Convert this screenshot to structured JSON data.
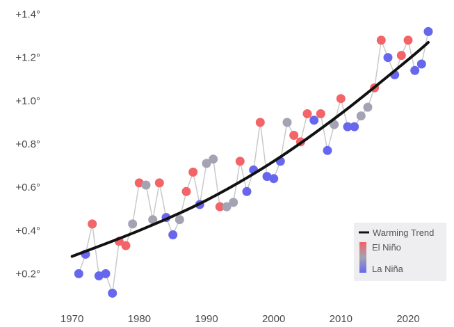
{
  "chart_data": {
    "type": "scatter",
    "xlim": [
      1966,
      2026
    ],
    "ylim": [
      0.05,
      1.45
    ],
    "x_ticks": [
      1970,
      1980,
      1990,
      2000,
      2010,
      2020
    ],
    "y_ticks": [
      0.2,
      0.4,
      0.6,
      0.8,
      1.0,
      1.2,
      1.4
    ],
    "y_tick_labels": [
      "+0.2°",
      "+0.4°",
      "+0.6°",
      "+0.8°",
      "+1.0°",
      "+1.2°",
      "+1.4°"
    ],
    "grid": false,
    "legend": {
      "position": "bottom-right",
      "trend_label": "Warming Trend",
      "el_nino_label": "El Niño",
      "la_nina_label": "La Niña"
    },
    "colors": {
      "el_nino": "#f26467",
      "neutral": "#a3a3b3",
      "la_nina": "#6767ee",
      "trend": "#111111",
      "connector": "#c9c9c9"
    },
    "series": [
      {
        "type": "line",
        "x": [
          1971,
          1972,
          1973,
          1974,
          1975,
          1976,
          1977,
          1978,
          1979,
          1980,
          1981,
          1982,
          1983,
          1984,
          1985,
          1986,
          1987,
          1988,
          1989,
          1990,
          1991,
          1992,
          1993,
          1994,
          1995,
          1996,
          1997,
          1998,
          1999,
          2000,
          2001,
          2002,
          2003,
          2004,
          2005,
          2006,
          2007,
          2008,
          2009,
          2010,
          2011,
          2012,
          2013,
          2014,
          2015,
          2016,
          2017,
          2018,
          2019,
          2020,
          2021,
          2022,
          2023
        ],
        "y": [
          0.2,
          0.29,
          0.43,
          0.19,
          0.2,
          0.11,
          0.35,
          0.33,
          0.43,
          0.62,
          0.61,
          0.45,
          0.62,
          0.46,
          0.38,
          0.45,
          0.58,
          0.67,
          0.52,
          0.71,
          0.73,
          0.51,
          0.51,
          0.53,
          0.72,
          0.58,
          0.68,
          0.9,
          0.65,
          0.64,
          0.72,
          0.9,
          0.84,
          0.81,
          0.94,
          0.91,
          0.94,
          0.77,
          0.89,
          1.01,
          0.88,
          0.88,
          0.93,
          0.97,
          1.06,
          1.28,
          1.2,
          1.12,
          1.21,
          1.28,
          1.14,
          1.17,
          1.32
        ],
        "enso": [
          "la_nina",
          "la_nina",
          "el_nino",
          "la_nina",
          "la_nina",
          "la_nina",
          "el_nino",
          "el_nino",
          "neutral",
          "el_nino",
          "neutral",
          "neutral",
          "el_nino",
          "la_nina",
          "la_nina",
          "neutral",
          "el_nino",
          "el_nino",
          "la_nina",
          "neutral",
          "neutral",
          "el_nino",
          "neutral",
          "neutral",
          "el_nino",
          "la_nina",
          "la_nina",
          "el_nino",
          "la_nina",
          "la_nina",
          "la_nina",
          "neutral",
          "el_nino",
          "el_nino",
          "el_nino",
          "la_nina",
          "el_nino",
          "la_nina",
          "neutral",
          "el_nino",
          "la_nina",
          "la_nina",
          "neutral",
          "neutral",
          "el_nino",
          "el_nino",
          "la_nina",
          "la_nina",
          "el_nino",
          "el_nino",
          "la_nina",
          "la_nina",
          "la_nina"
        ]
      },
      {
        "type": "line",
        "x": [
          1970,
          1980,
          1990,
          2000,
          2010,
          2020,
          2023
        ],
        "y": [
          0.28,
          0.4,
          0.54,
          0.72,
          0.94,
          1.19,
          1.27
        ]
      }
    ]
  }
}
